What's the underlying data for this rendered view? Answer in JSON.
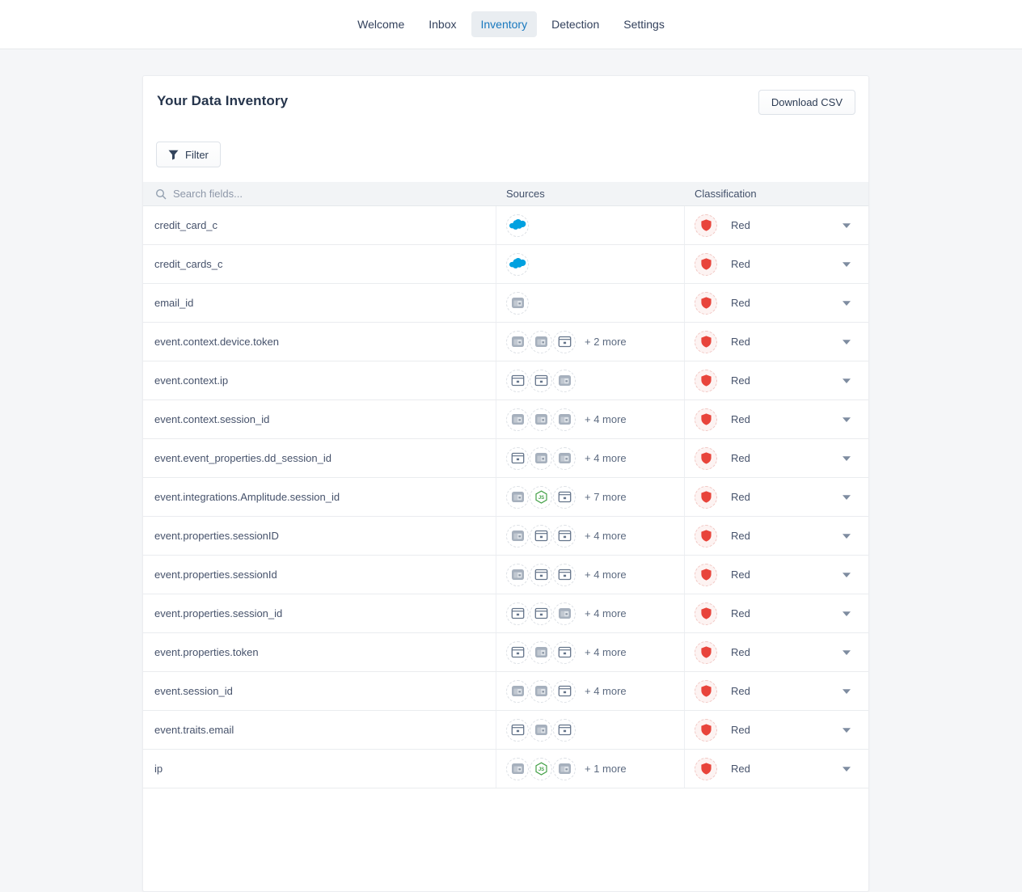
{
  "nav": {
    "tabs": [
      {
        "label": "Welcome",
        "active": false
      },
      {
        "label": "Inbox",
        "active": false
      },
      {
        "label": "Inventory",
        "active": true
      },
      {
        "label": "Detection",
        "active": false
      },
      {
        "label": "Settings",
        "active": false
      }
    ]
  },
  "card": {
    "title": "Your Data Inventory",
    "download_button_label": "Download CSV",
    "filter_button_label": "Filter"
  },
  "table": {
    "search_placeholder": "Search fields...",
    "columns": {
      "sources": "Sources",
      "classification": "Classification"
    },
    "rows": [
      {
        "field": "credit_card_c",
        "source_icons": [
          "salesforce-icon"
        ],
        "more": "",
        "classification": "Red"
      },
      {
        "field": "credit_cards_c",
        "source_icons": [
          "salesforce-icon"
        ],
        "more": "",
        "classification": "Red"
      },
      {
        "field": "email_id",
        "source_icons": [
          "browser-window-filled-icon"
        ],
        "more": "",
        "classification": "Red"
      },
      {
        "field": "event.context.device.token",
        "source_icons": [
          "browser-window-filled-icon",
          "browser-window-filled-icon",
          "browser-window-outline-icon"
        ],
        "more": "+ 2 more",
        "classification": "Red"
      },
      {
        "field": "event.context.ip",
        "source_icons": [
          "browser-window-outline-icon",
          "browser-window-outline-icon",
          "browser-window-filled-icon"
        ],
        "more": "",
        "classification": "Red"
      },
      {
        "field": "event.context.session_id",
        "source_icons": [
          "browser-window-filled-icon",
          "browser-window-filled-icon",
          "browser-window-filled-icon"
        ],
        "more": "+ 4 more",
        "classification": "Red"
      },
      {
        "field": "event.event_properties.dd_session_id",
        "source_icons": [
          "browser-window-outline-icon",
          "browser-window-filled-icon",
          "browser-window-filled-icon"
        ],
        "more": "+ 4 more",
        "classification": "Red"
      },
      {
        "field": "event.integrations.Amplitude.session_id",
        "source_icons": [
          "browser-window-filled-icon",
          "nodejs-icon",
          "browser-window-outline-icon"
        ],
        "more": "+ 7 more",
        "classification": "Red"
      },
      {
        "field": "event.properties.sessionID",
        "source_icons": [
          "browser-window-filled-icon",
          "browser-window-outline-icon",
          "browser-window-outline-icon"
        ],
        "more": "+ 4 more",
        "classification": "Red"
      },
      {
        "field": "event.properties.sessionId",
        "source_icons": [
          "browser-window-filled-icon",
          "browser-window-outline-icon",
          "browser-window-outline-icon"
        ],
        "more": "+ 4 more",
        "classification": "Red"
      },
      {
        "field": "event.properties.session_id",
        "source_icons": [
          "browser-window-outline-icon",
          "browser-window-outline-icon",
          "browser-window-filled-icon"
        ],
        "more": "+ 4 more",
        "classification": "Red"
      },
      {
        "field": "event.properties.token",
        "source_icons": [
          "browser-window-outline-icon",
          "browser-window-filled-icon",
          "browser-window-outline-icon"
        ],
        "more": "+ 4 more",
        "classification": "Red"
      },
      {
        "field": "event.session_id",
        "source_icons": [
          "browser-window-filled-icon",
          "browser-window-filled-icon",
          "browser-window-outline-icon"
        ],
        "more": "+ 4 more",
        "classification": "Red"
      },
      {
        "field": "event.traits.email",
        "source_icons": [
          "browser-window-outline-icon",
          "browser-window-filled-icon",
          "browser-window-outline-icon"
        ],
        "more": "",
        "classification": "Red"
      },
      {
        "field": "ip",
        "source_icons": [
          "browser-window-filled-icon",
          "nodejs-icon",
          "browser-window-filled-icon"
        ],
        "more": "+ 1 more",
        "classification": "Red"
      }
    ]
  },
  "colors": {
    "active_tab_text": "#1878be",
    "classification_red": "#e8443b",
    "salesforce_blue": "#00a1e0",
    "nodejs_green": "#43a047",
    "page_background": "#f5f6f8"
  }
}
